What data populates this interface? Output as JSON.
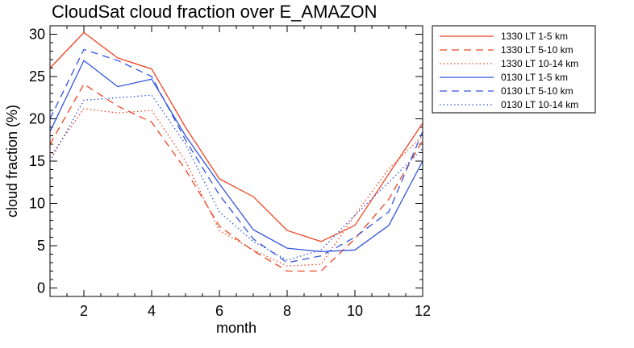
{
  "chart_data": {
    "type": "line",
    "title": "CloudSat cloud fraction over E_AMAZON",
    "xlabel": "month",
    "ylabel": "cloud fraction (%)",
    "xlim": [
      1,
      12
    ],
    "ylim": [
      -1,
      31
    ],
    "xticks": [
      "2",
      "4",
      "6",
      "8",
      "10",
      "12"
    ],
    "yticks": [
      "0",
      "5",
      "10",
      "15",
      "20",
      "25",
      "30"
    ],
    "legend_position": "top-right-outside",
    "x": [
      1,
      2,
      3,
      4,
      5,
      6,
      7,
      8,
      9,
      10,
      11,
      12
    ],
    "series": [
      {
        "name": "1330 LT 1-5 km",
        "color": "#ee4422",
        "dash": "solid",
        "values": [
          26.0,
          30.2,
          27.2,
          25.9,
          19.0,
          12.9,
          10.8,
          6.8,
          5.5,
          7.4,
          13.5,
          19.5
        ]
      },
      {
        "name": "1330 LT 5-10 km",
        "color": "#ee4422",
        "dash": "dashed",
        "values": [
          17.0,
          24.1,
          21.5,
          19.6,
          14.0,
          7.3,
          4.4,
          2.0,
          2.0,
          5.8,
          10.5,
          17.5
        ]
      },
      {
        "name": "1330 LT 10-14 km",
        "color": "#ee4422",
        "dash": "dotted",
        "values": [
          15.5,
          21.2,
          20.7,
          21.0,
          15.0,
          6.8,
          4.5,
          2.6,
          2.8,
          8.6,
          14.1,
          18.0
        ]
      },
      {
        "name": "0130 LT 1-5 km",
        "color": "#3355dd",
        "dash": "solid",
        "values": [
          18.5,
          26.9,
          23.8,
          24.7,
          18.0,
          12.3,
          6.9,
          4.7,
          4.3,
          4.5,
          7.4,
          15.0
        ]
      },
      {
        "name": "0130 LT 5-10 km",
        "color": "#3355dd",
        "dash": "dashed",
        "values": [
          20.0,
          28.2,
          26.9,
          25.0,
          17.5,
          11.0,
          5.8,
          3.0,
          3.8,
          6.0,
          9.0,
          18.5
        ]
      },
      {
        "name": "0130 LT 10-14 km",
        "color": "#3355dd",
        "dash": "dotted",
        "values": [
          15.0,
          22.2,
          22.5,
          22.8,
          17.0,
          9.0,
          5.5,
          3.3,
          4.5,
          8.6,
          12.5,
          16.5
        ]
      }
    ]
  }
}
